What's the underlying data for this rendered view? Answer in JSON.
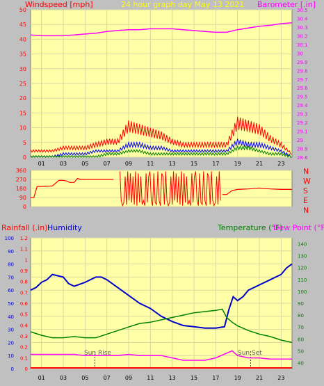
{
  "header": {
    "wind_label": "Windspeed [mph]",
    "title": "24 hour graph day   May 13 2021",
    "baro_label": "Barometer [.in]"
  },
  "rain_label": "Rainfall (.in)",
  "humidity_label": "Humidity",
  "temp_label": "Temperature (°F)",
  "dew_label": "Dew Point (°F)",
  "sun_rise_label": "Sun Rise",
  "sun_set_label": "Sun Set",
  "colors": {
    "plot_bg": "#ffffa8",
    "wind_gust": "#ff0000",
    "wind_avg": "#0000ff",
    "wind_low": "#008000",
    "barometer": "#ff00ff",
    "direction": "#ff0000",
    "humidity": "#0000cc",
    "temperature": "#008000",
    "dew_point": "#ff00ff",
    "rain": "#ff0000",
    "label_red": "#ff0000",
    "label_blue": "#0000cc",
    "label_green": "#008000",
    "label_magenta": "#ff00ff",
    "title_yellow": "#ffff00"
  },
  "chart_data": [
    {
      "type": "line",
      "title": "24 hour graph day   May 13 2021",
      "ylabel": "Windspeed [mph]",
      "y2label": "Barometer [.in]",
      "xlim": [
        0,
        24
      ],
      "ylim": [
        0,
        50
      ],
      "y2lim": [
        28.8,
        30.5
      ],
      "x_ticks": [
        "01",
        "03",
        "05",
        "07",
        "09",
        "11",
        "13",
        "15",
        "17",
        "19",
        "21",
        "23"
      ],
      "y_ticks": [
        "0",
        "5",
        "10",
        "15",
        "20",
        "25",
        "30",
        "35",
        "40",
        "45",
        "50"
      ],
      "y2_ticks": [
        "28.8",
        "28.9",
        "29",
        "29.1",
        "29.2",
        "29.3",
        "29.4",
        "29.5",
        "29.6",
        "29.7",
        "29.8",
        "29.9",
        "30",
        "30.1",
        "30.2",
        "30.3",
        "30.4",
        "30.5"
      ],
      "grid": true,
      "series": [
        {
          "name": "Barometer",
          "x": [
            0,
            1,
            2,
            3,
            4,
            5,
            6,
            7,
            8,
            9,
            10,
            11,
            12,
            13,
            14,
            15,
            16,
            17,
            18,
            19,
            20,
            21,
            22,
            23,
            24
          ],
          "values": [
            30.21,
            30.2,
            30.2,
            30.2,
            30.21,
            30.22,
            30.23,
            30.25,
            30.26,
            30.27,
            30.27,
            30.28,
            30.28,
            30.28,
            30.27,
            30.26,
            30.25,
            30.24,
            30.24,
            30.27,
            30.29,
            30.31,
            30.32,
            30.34,
            30.35
          ]
        },
        {
          "name": "Gust",
          "x": [
            0,
            1,
            2,
            3,
            4,
            5,
            6,
            7,
            8,
            9,
            10,
            11,
            12,
            13,
            14,
            15,
            16,
            17,
            18,
            19,
            20,
            21,
            22,
            23,
            24
          ],
          "values": [
            2,
            2,
            2,
            3,
            3,
            3,
            4,
            5,
            5,
            10,
            9,
            8,
            7,
            5,
            4,
            4,
            4,
            4,
            4,
            11,
            10,
            9,
            6,
            4,
            1
          ]
        },
        {
          "name": "Average",
          "x": [
            0,
            1,
            2,
            3,
            4,
            5,
            6,
            7,
            8,
            9,
            10,
            11,
            12,
            13,
            14,
            15,
            16,
            17,
            18,
            19,
            20,
            21,
            22,
            23,
            24
          ],
          "values": [
            0,
            0,
            0,
            1,
            1,
            1,
            2,
            2,
            2,
            4,
            4,
            3,
            3,
            2,
            2,
            2,
            2,
            2,
            2,
            5,
            4,
            4,
            3,
            2,
            0
          ]
        },
        {
          "name": "Low",
          "x": [
            0,
            1,
            2,
            3,
            4,
            5,
            6,
            7,
            8,
            9,
            10,
            11,
            12,
            13,
            14,
            15,
            16,
            17,
            18,
            19,
            20,
            21,
            22,
            23,
            24
          ],
          "values": [
            0,
            0,
            0,
            0,
            0,
            0,
            0,
            1,
            1,
            2,
            2,
            1,
            1,
            1,
            1,
            1,
            1,
            1,
            1,
            3,
            3,
            2,
            1,
            1,
            0
          ]
        }
      ]
    },
    {
      "type": "line",
      "ylabel": "Direction",
      "xlim": [
        0,
        24
      ],
      "ylim": [
        0,
        360
      ],
      "y_ticks": [
        "0",
        "90",
        "180",
        "270",
        "360"
      ],
      "right_labels": [
        "N",
        "W",
        "S",
        "E",
        "N"
      ],
      "grid": true,
      "series": [
        {
          "name": "Wind Direction",
          "x": [
            0,
            0.3,
            0.6,
            1,
            2,
            2.6,
            3,
            3.3,
            3.6,
            4,
            4.3,
            4.6,
            5,
            6,
            7,
            7.6
          ],
          "values": [
            90,
            90,
            200,
            200,
            205,
            260,
            260,
            255,
            240,
            240,
            280,
            270,
            270,
            270,
            270,
            270
          ]
        },
        {
          "name": "Wind Direction",
          "x": [
            17.6,
            18,
            18.5,
            19,
            20,
            21,
            22,
            23,
            24
          ],
          "values": [
            120,
            120,
            160,
            170,
            175,
            185,
            175,
            170,
            170
          ]
        }
      ]
    },
    {
      "type": "line",
      "ylabel": "Rainfall (.in)",
      "y2label": "Temperature (°F)",
      "xlim": [
        0,
        24
      ],
      "x_ticks": [
        "01",
        "03",
        "05",
        "07",
        "09",
        "11",
        "13",
        "15",
        "17",
        "19",
        "21",
        "23"
      ],
      "humidity_ticks": [
        "0",
        "10",
        "20",
        "30",
        "40",
        "50",
        "60",
        "70",
        "80",
        "90",
        "100"
      ],
      "rain_ticks": [
        "0",
        "0.1",
        "0.2",
        "0.3",
        "0.4",
        "0.5",
        "0.6",
        "0.7",
        "0.8",
        "0.9",
        "1",
        "1.1",
        "1.2"
      ],
      "temp_ticks": [
        "40",
        "50",
        "60",
        "70",
        "80",
        "90",
        "100",
        "110",
        "120",
        "130",
        "140"
      ],
      "humidity_lim": [
        0,
        100
      ],
      "temp_lim": [
        35,
        145
      ],
      "grid": true,
      "series": [
        {
          "name": "Humidity",
          "x": [
            0,
            0.5,
            1,
            1.5,
            2,
            2.5,
            3,
            3.5,
            4,
            5,
            6,
            6.5,
            7,
            7.5,
            8,
            9,
            10,
            11,
            12,
            13,
            14,
            15,
            16,
            17,
            17.8,
            18.2,
            18.6,
            19,
            19.5,
            20,
            21,
            22,
            23,
            23.5,
            24
          ],
          "values": [
            60,
            62,
            66,
            68,
            72,
            71,
            70,
            65,
            63,
            66,
            70,
            70,
            68,
            65,
            62,
            56,
            50,
            46,
            40,
            36,
            33,
            32,
            31,
            31,
            32,
            45,
            55,
            52,
            55,
            60,
            64,
            68,
            72,
            77,
            80
          ]
        },
        {
          "name": "Temperature",
          "x": [
            0,
            1,
            2,
            3,
            4,
            5,
            6,
            7,
            8,
            9,
            10,
            11,
            12,
            13,
            14,
            15,
            16,
            17,
            17.6,
            18,
            18.5,
            19,
            20,
            21,
            22,
            23,
            24
          ],
          "values": [
            66,
            63,
            61,
            61,
            62,
            61,
            61,
            64,
            67,
            70,
            73,
            74,
            76,
            78,
            80,
            82,
            83,
            84,
            85,
            78,
            74,
            71,
            67,
            64,
            62,
            59,
            57
          ]
        },
        {
          "name": "Dew Point",
          "x": [
            0,
            1,
            2,
            3,
            4,
            5,
            6,
            7,
            8,
            9,
            10,
            11,
            12,
            13,
            14,
            15,
            16,
            17,
            17.5,
            18,
            18.5,
            19,
            20,
            21,
            22,
            23,
            24
          ],
          "values": [
            47,
            47,
            47,
            47,
            47,
            46,
            46,
            46,
            46,
            47,
            46,
            46,
            46,
            44,
            42,
            42,
            42,
            44,
            46,
            48,
            50,
            46,
            44,
            44,
            43,
            43,
            43
          ]
        },
        {
          "name": "Rainfall",
          "x": [
            0,
            24
          ],
          "values": [
            0,
            0
          ]
        }
      ]
    }
  ]
}
